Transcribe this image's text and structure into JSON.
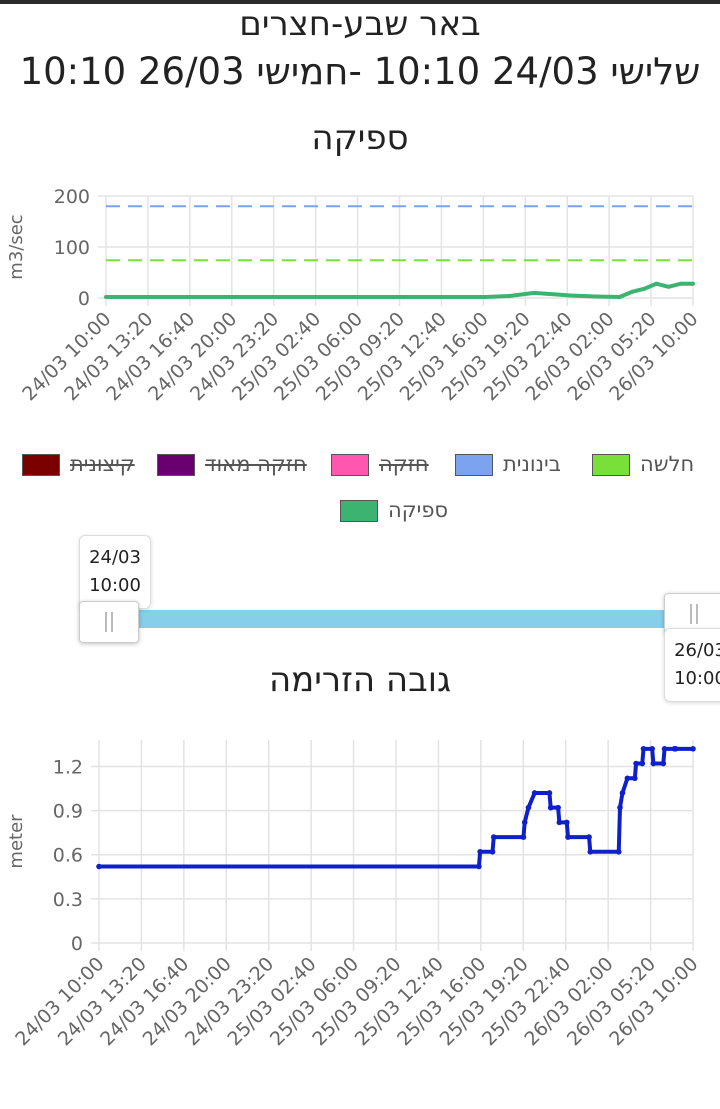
{
  "header": {
    "station": "באר שבע-חצרים",
    "range": "שלישי 24/03 10:10 -חמישי 26/03 10:10"
  },
  "legend": [
    {
      "label": "קיצונית",
      "color": "#7b0000",
      "hidden": true
    },
    {
      "label": "חזקה מאוד",
      "color": "#6a006f",
      "hidden": true
    },
    {
      "label": "חזקה",
      "color": "#ff57b0",
      "hidden": true
    },
    {
      "label": "בינונית",
      "color": "#7ba3f0",
      "hidden": false
    },
    {
      "label": "חלשה",
      "color": "#79e03a",
      "hidden": false
    },
    {
      "label": "ספיקה",
      "color": "#3cb371",
      "hidden": false
    }
  ],
  "slider": {
    "start_date": "24/03",
    "start_time": "10:00",
    "end_date": "26/03",
    "end_time": "10:00",
    "start_fraction": 0,
    "end_fraction": 1
  },
  "chart_data": [
    {
      "type": "line",
      "title": "ספיקה",
      "ylabel": "m3/sec",
      "ylim": [
        0,
        200
      ],
      "yticks": [
        0,
        100,
        200
      ],
      "grid": true,
      "xticks": [
        "24/03 10:00",
        "24/03 13:20",
        "24/03 16:40",
        "24/03 20:00",
        "24/03 23:20",
        "25/03 02:40",
        "25/03 06:00",
        "25/03 09:20",
        "25/03 12:40",
        "25/03 16:00",
        "25/03 19:20",
        "25/03 22:40",
        "26/03 02:00",
        "26/03 05:20",
        "26/03 10:00"
      ],
      "thresholds": [
        {
          "name": "בינונית",
          "value": 180,
          "color": "#7ba3f0"
        },
        {
          "name": "חלשה",
          "value": 74,
          "color": "#79e03a"
        }
      ],
      "series": [
        {
          "name": "ספיקה",
          "color": "#3cb371",
          "x": [
            0,
            31,
            32,
            33,
            35,
            38,
            40,
            42,
            43,
            44,
            45,
            46,
            47,
            48
          ],
          "y": [
            2,
            2,
            3,
            4,
            10,
            5,
            3,
            2,
            12,
            18,
            28,
            22,
            28,
            28
          ]
        }
      ]
    },
    {
      "type": "line",
      "title": "גובה הזרימה",
      "ylabel": "meter",
      "ylim": [
        0,
        1.38
      ],
      "yticks": [
        0,
        0.3,
        0.6,
        0.9,
        1.2
      ],
      "grid": true,
      "xticks": [
        "24/03 10:00",
        "24/03 13:20",
        "24/03 16:40",
        "24/03 20:00",
        "24/03 23:20",
        "25/03 02:40",
        "25/03 06:00",
        "25/03 09:20",
        "25/03 12:40",
        "25/03 16:00",
        "25/03 19:20",
        "25/03 22:40",
        "26/03 02:00",
        "26/03 05:20",
        "26/03 10:00"
      ],
      "series": [
        {
          "name": "",
          "color": "#1020c8",
          "x": [
            0,
            30.7,
            30.8,
            31.8,
            31.9,
            34.3,
            34.4,
            34.7,
            35.2,
            36.4,
            36.5,
            37.1,
            37.2,
            37.8,
            37.9,
            39.6,
            39.7,
            42.0,
            42.1,
            42.3,
            42.7,
            43.3,
            43.4,
            43.9,
            44.0,
            44.7,
            44.8,
            45.6,
            45.7,
            46.5,
            46.6,
            48.0
          ],
          "y": [
            0.52,
            0.52,
            0.62,
            0.62,
            0.72,
            0.72,
            0.82,
            0.92,
            1.02,
            1.02,
            0.92,
            0.92,
            0.82,
            0.82,
            0.72,
            0.72,
            0.62,
            0.62,
            0.92,
            1.02,
            1.12,
            1.12,
            1.22,
            1.22,
            1.32,
            1.32,
            1.22,
            1.22,
            1.32,
            1.32,
            1.32,
            1.32
          ]
        }
      ]
    }
  ]
}
